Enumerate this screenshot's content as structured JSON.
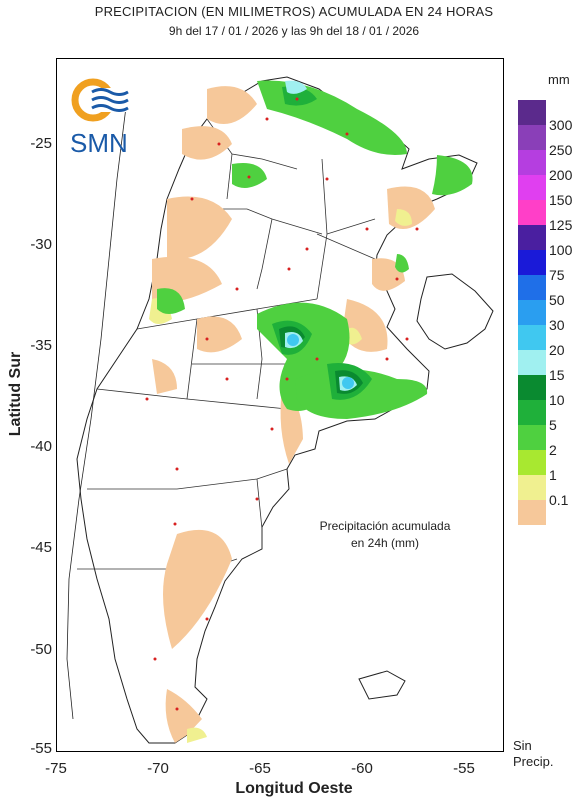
{
  "title": {
    "line1": "PRECIPITACION (EN MILIMETROS) ACUMULADA EN 24 HORAS",
    "line2": "9h del 17 / 01 / 2026  y las 9h del 18 / 01 / 2026"
  },
  "logo": {
    "text": "SMN"
  },
  "axes": {
    "ylabel": "Latitud Sur",
    "xlabel": "Longitud Oeste",
    "yticks": [
      "-25",
      "-30",
      "-35",
      "-40",
      "-45",
      "-50",
      "-55"
    ],
    "xticks": [
      "-75",
      "-70",
      "-65",
      "-60",
      "-55"
    ]
  },
  "note": {
    "line1": "Precipitación acumulada",
    "line2": "en 24h (mm)"
  },
  "legend": {
    "units": "mm",
    "labels": [
      "300",
      "250",
      "200",
      "150",
      "125",
      "100",
      "75",
      "50",
      "30",
      "20",
      "15",
      "10",
      "5",
      "2",
      "1",
      "0.1"
    ],
    "colors": [
      "#5b2a8c",
      "#8a3fb8",
      "#b53ee0",
      "#e03ff0",
      "#ff3fc8",
      "#4a1fa0",
      "#1a1ad8",
      "#1f6fe8",
      "#2a9ef0",
      "#40c8f0",
      "#a0f0f0",
      "#0a8a30",
      "#1fb03a",
      "#4fd040",
      "#a8e830",
      "#f0f090",
      "#f6c89a"
    ],
    "sin_line1": "Sin",
    "sin_line2": "Precip."
  }
}
